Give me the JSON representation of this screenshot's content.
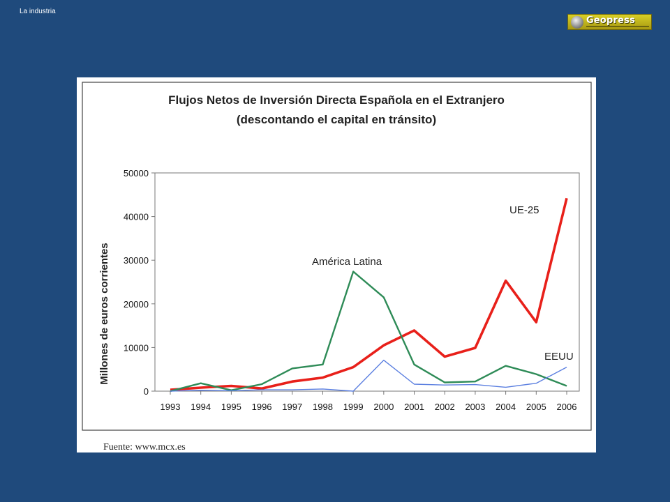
{
  "header": {
    "section_label": "La industria",
    "logo_text": "Geopress"
  },
  "source_note": "Fuente: www.mcx.es",
  "chart_data": {
    "type": "line",
    "title": "Flujos Netos de Inversión Directa Española en el Extranjero",
    "subtitle": "(descontando el capital en tránsito)",
    "xlabel": "",
    "ylabel": "Millones de euros corrientes",
    "x": [
      "1993",
      "1994",
      "1995",
      "1996",
      "1997",
      "1998",
      "1999",
      "2000",
      "2001",
      "2002",
      "2003",
      "2004",
      "2005",
      "2006"
    ],
    "ylim": [
      0,
      50000
    ],
    "yticks": [
      0,
      10000,
      20000,
      30000,
      40000,
      50000
    ],
    "grid": false,
    "series": [
      {
        "name": "UE-25",
        "color": "#e8201a",
        "values": [
          300,
          800,
          1200,
          600,
          2200,
          3100,
          5500,
          10500,
          13900,
          7900,
          9900,
          25300,
          15800,
          44200
        ]
      },
      {
        "name": "América Latina",
        "color": "#2e8b57",
        "values": [
          0,
          1800,
          200,
          1600,
          5200,
          6100,
          27400,
          21500,
          6100,
          2000,
          2200,
          5800,
          3900,
          1200
        ]
      },
      {
        "name": "EEUU",
        "color": "#5b7fe0",
        "values": [
          0,
          200,
          100,
          300,
          300,
          500,
          0,
          7100,
          1600,
          1400,
          1500,
          900,
          1800,
          5500
        ]
      }
    ]
  }
}
